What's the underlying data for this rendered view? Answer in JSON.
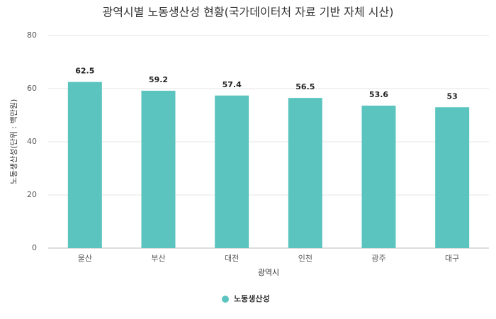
{
  "chart_data": {
    "type": "bar",
    "title": "광역시별 노동생산성 현황(국가데이터처 자료 기반 자체 시산)",
    "x_label": "광역시",
    "y_label": "노동생산성(단위 : 백만원)",
    "categories": [
      "울산",
      "부산",
      "대전",
      "인천",
      "광주",
      "대구"
    ],
    "series": [
      {
        "name": "노동생산성",
        "color": "#5bc4be",
        "values": [
          62.5,
          59.2,
          57.4,
          56.5,
          53.6,
          53
        ]
      }
    ],
    "ylim": [
      0,
      80
    ],
    "yticks": [
      0,
      20,
      40,
      60,
      80
    ],
    "grid": true
  }
}
